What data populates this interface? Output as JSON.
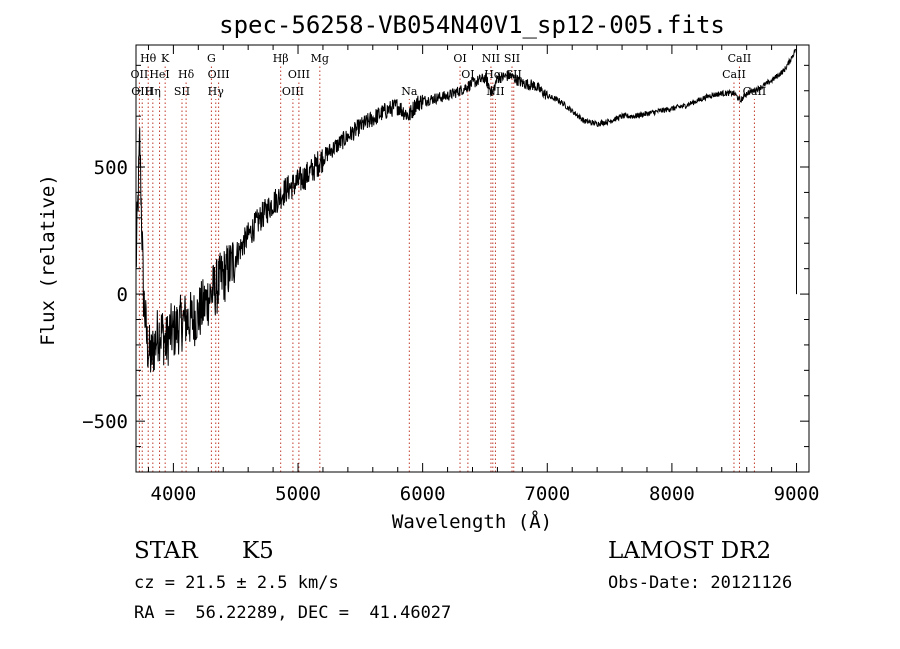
{
  "chart_data": {
    "type": "line",
    "title": "spec-56258-VB054N40V1_sp12-005.fits",
    "xlabel": "Wavelength (Å)",
    "ylabel": "Flux (relative)",
    "xlim": [
      3700,
      9100
    ],
    "ylim": [
      -700,
      980
    ],
    "x_ticks": [
      4000,
      5000,
      6000,
      7000,
      8000,
      9000
    ],
    "x_tick_labels": [
      "4000",
      "5000",
      "6000",
      "7000",
      "8000",
      "9000"
    ],
    "y_ticks": [
      -500,
      0,
      500
    ],
    "y_tick_labels": [
      "−500",
      "0",
      "500"
    ],
    "grid": false,
    "series": [
      {
        "name": "spectrum",
        "x": [
          3700,
          3730,
          3760,
          3790,
          3820,
          3850,
          3880,
          3910,
          3940,
          3970,
          4000,
          4050,
          4100,
          4150,
          4200,
          4250,
          4300,
          4350,
          4400,
          4450,
          4500,
          4600,
          4700,
          4800,
          4850,
          4900,
          5000,
          5100,
          5170,
          5250,
          5300,
          5400,
          5500,
          5600,
          5700,
          5800,
          5890,
          5950,
          6000,
          6100,
          6200,
          6300,
          6400,
          6500,
          6560,
          6600,
          6700,
          6800,
          6900,
          7000,
          7100,
          7200,
          7300,
          7400,
          7500,
          7600,
          7700,
          7800,
          7900,
          8000,
          8100,
          8200,
          8300,
          8400,
          8500,
          8550,
          8600,
          8700,
          8800,
          8850,
          8900,
          8950,
          8990
        ],
        "y": [
          100,
          600,
          0,
          -200,
          -250,
          -200,
          -150,
          -150,
          -200,
          -150,
          -150,
          -120,
          -100,
          -100,
          -80,
          -40,
          0,
          30,
          70,
          100,
          150,
          230,
          300,
          360,
          380,
          410,
          440,
          480,
          520,
          560,
          580,
          620,
          660,
          690,
          720,
          740,
          700,
          750,
          760,
          770,
          780,
          800,
          830,
          850,
          790,
          850,
          860,
          830,
          820,
          780,
          760,
          720,
          680,
          670,
          680,
          700,
          700,
          710,
          720,
          730,
          740,
          760,
          780,
          790,
          790,
          760,
          790,
          810,
          840,
          860,
          880,
          920,
          960
        ]
      }
    ],
    "line_markers": [
      {
        "label": "Hθ",
        "x": 3798,
        "row": 1
      },
      {
        "label": "K",
        "x": 3934,
        "row": 1
      },
      {
        "label": "G",
        "x": 4305,
        "row": 1
      },
      {
        "label": "Hβ",
        "x": 4861,
        "row": 1
      },
      {
        "label": "Mg",
        "x": 5175,
        "row": 1
      },
      {
        "label": "OI",
        "x": 6300,
        "row": 1
      },
      {
        "label": "NII",
        "x": 6548,
        "row": 1
      },
      {
        "label": "SII",
        "x": 6717,
        "row": 1
      },
      {
        "label": "CaII",
        "x": 8542,
        "row": 1
      },
      {
        "label": "OII",
        "x": 3727,
        "row": 2
      },
      {
        "label": "HeI",
        "x": 3889,
        "row": 2
      },
      {
        "label": "Hδ",
        "x": 4102,
        "row": 2
      },
      {
        "label": "OIII",
        "x": 4363,
        "row": 2
      },
      {
        "label": "OIII",
        "x": 5007,
        "row": 2
      },
      {
        "label": "OI",
        "x": 6363,
        "row": 2
      },
      {
        "label": "Hα",
        "x": 6563,
        "row": 2
      },
      {
        "label": "SII",
        "x": 6731,
        "row": 2
      },
      {
        "label": "CaII",
        "x": 8498,
        "row": 2
      },
      {
        "label": "OIII",
        "x": 3750,
        "row": 3
      },
      {
        "label": "Hη",
        "x": 3835,
        "row": 3
      },
      {
        "label": "SII",
        "x": 4069,
        "row": 3
      },
      {
        "label": "Hγ",
        "x": 4340,
        "row": 3
      },
      {
        "label": "OIII",
        "x": 4959,
        "row": 3
      },
      {
        "label": "Na",
        "x": 5893,
        "row": 3
      },
      {
        "label": "NII",
        "x": 6584,
        "row": 3
      },
      {
        "label": "CaII",
        "x": 8662,
        "row": 3
      }
    ]
  },
  "info": {
    "class": "STAR",
    "subclass": "K5",
    "survey": "LAMOST DR2",
    "cz": "cz = 21.5 ± 2.5 km/s",
    "obs_date": "Obs-Date: 20121126",
    "radec": "RA =  56.22289, DEC =  41.46027"
  }
}
